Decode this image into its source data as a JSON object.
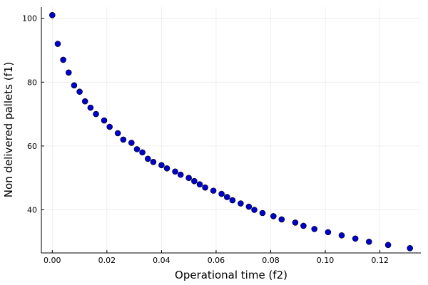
{
  "chart_data": {
    "type": "scatter",
    "xlabel": "Operational time (f2)",
    "ylabel": "Non delivered pallets (f1)",
    "xlim": [
      -0.004,
      0.135
    ],
    "ylim": [
      26.5,
      103.5
    ],
    "x_ticks": [
      0.0,
      0.02,
      0.04,
      0.06,
      0.08,
      0.1,
      0.12
    ],
    "x_tick_labels": [
      "0.00",
      "0.02",
      "0.04",
      "0.06",
      "0.08",
      "0.10",
      "0.12"
    ],
    "y_ticks": [
      40,
      60,
      80,
      100
    ],
    "y_tick_labels": [
      "40",
      "60",
      "80",
      "100"
    ],
    "grid": true,
    "legend": "none",
    "marker_color": "#0000cc",
    "marker_edge_color": "#000000",
    "series": [
      {
        "x": [
          0.0,
          0.002,
          0.004,
          0.006,
          0.008,
          0.01,
          0.012,
          0.014,
          0.016,
          0.019,
          0.021,
          0.024,
          0.026,
          0.029,
          0.031,
          0.033,
          0.035,
          0.037,
          0.04,
          0.042,
          0.045,
          0.047,
          0.05,
          0.052,
          0.054,
          0.056,
          0.059,
          0.062,
          0.064,
          0.066,
          0.069,
          0.072,
          0.074,
          0.077,
          0.081,
          0.084,
          0.089,
          0.092,
          0.096,
          0.101,
          0.106,
          0.111,
          0.116,
          0.123,
          0.131
        ],
        "y": [
          101,
          92,
          87,
          83,
          79,
          77,
          74,
          72,
          70,
          68,
          66,
          64,
          62,
          61,
          59,
          58,
          56,
          55,
          54,
          53,
          52,
          51,
          50,
          49,
          48,
          47,
          46,
          45,
          44,
          43,
          42,
          41,
          40,
          39,
          38,
          37,
          36,
          35,
          34,
          33,
          32,
          31,
          30,
          29,
          28
        ]
      }
    ]
  }
}
